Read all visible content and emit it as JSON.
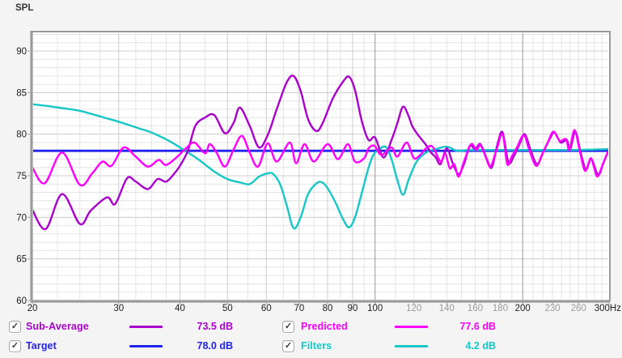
{
  "title": "SPL",
  "colors": {
    "sub_average": "#AA00CC",
    "target": "#2222EE",
    "predicted": "#FF00FF",
    "filters": "#17C6C6",
    "tick_dark": "#1c1c1c",
    "tick_gray": "#9b9b9b",
    "frame": "#9b9b9b",
    "grid_minor": "#e4e4e4",
    "grid_medium": "#cccccc",
    "grid_dark": "#a6a6a6",
    "plot_bg": "#ffffff"
  },
  "chart_data": {
    "type": "line",
    "title": "SPL",
    "xlabel": "Hz",
    "ylabel": "SPL (dB)",
    "x_scale": "log",
    "x_range": [
      20,
      300
    ],
    "y_range": [
      60,
      92.3
    ],
    "grid": true,
    "legend_position": "bottom",
    "y_major_ticks": [
      90,
      85,
      80,
      75,
      70,
      65,
      60
    ],
    "x_ticks": [
      {
        "f": 20,
        "label": "20"
      },
      {
        "f": 30,
        "label": "30"
      },
      {
        "f": 40,
        "label": "40"
      },
      {
        "f": 50,
        "label": "50"
      },
      {
        "f": 60,
        "label": "60"
      },
      {
        "f": 70,
        "label": "70"
      },
      {
        "f": 80,
        "label": "80"
      },
      {
        "f": 90,
        "label": "90"
      },
      {
        "f": 100,
        "label": "100"
      },
      {
        "f": 120,
        "label": "120",
        "gray": true
      },
      {
        "f": 140,
        "label": "140",
        "gray": true
      },
      {
        "f": 160,
        "label": "160",
        "gray": true
      },
      {
        "f": 180,
        "label": "180",
        "gray": true
      },
      {
        "f": 200,
        "label": "200"
      },
      {
        "f": 230,
        "label": "230",
        "gray": true
      },
      {
        "f": 260,
        "label": "260",
        "gray": true
      },
      {
        "f": 300,
        "label": "300Hz",
        "end": true
      }
    ],
    "x_medium_gridlines": [
      30,
      40,
      50,
      60,
      70,
      80,
      90
    ],
    "x_dark_gridlines": [
      100,
      200
    ],
    "x_minor_gridlines": [
      22.5,
      25,
      27.5,
      32.5,
      35,
      37.5,
      45,
      55,
      65,
      75,
      85,
      95,
      110,
      120,
      130,
      140,
      150,
      160,
      170,
      180,
      190,
      210,
      220,
      230,
      240,
      250,
      260,
      270,
      280,
      290
    ],
    "series": [
      {
        "name": "Target",
        "color": "#2222EE",
        "width": 2.8,
        "points": [
          [
            20,
            78
          ],
          [
            300,
            78
          ]
        ]
      },
      {
        "name": "Filters",
        "color": "#17C6C6",
        "width": 2.4,
        "points": [
          [
            20,
            83.6
          ],
          [
            22,
            83.3
          ],
          [
            25,
            82.8
          ],
          [
            28,
            82.0
          ],
          [
            30,
            81.5
          ],
          [
            33,
            80.7
          ],
          [
            35,
            80.2
          ],
          [
            38,
            79.2
          ],
          [
            41,
            78.0
          ],
          [
            44,
            76.8
          ],
          [
            47,
            75.5
          ],
          [
            50,
            74.6
          ],
          [
            53,
            74.2
          ],
          [
            55.5,
            74.0
          ],
          [
            58,
            74.9
          ],
          [
            60.5,
            75.3
          ],
          [
            62,
            75.2
          ],
          [
            64,
            74.0
          ],
          [
            66,
            71.5
          ],
          [
            68.2,
            68.7
          ],
          [
            70.5,
            70.0
          ],
          [
            73,
            72.8
          ],
          [
            76,
            74.1
          ],
          [
            78,
            74.2
          ],
          [
            80,
            73.5
          ],
          [
            83,
            71.8
          ],
          [
            86,
            69.8
          ],
          [
            88.5,
            68.8
          ],
          [
            91,
            70.0
          ],
          [
            94,
            73.0
          ],
          [
            97,
            76.0
          ],
          [
            99,
            77.4
          ],
          [
            101,
            78.0
          ],
          [
            105,
            78.5
          ],
          [
            108,
            77.0
          ],
          [
            111,
            74.5
          ],
          [
            114,
            72.7
          ],
          [
            117,
            74.5
          ],
          [
            121,
            76.5
          ],
          [
            124,
            77.3
          ],
          [
            128,
            77.9
          ],
          [
            133,
            78.2
          ],
          [
            140,
            78.5
          ],
          [
            147,
            78.0
          ],
          [
            155,
            78.1
          ],
          [
            170,
            78.1
          ],
          [
            200,
            78.1
          ],
          [
            250,
            78.1
          ],
          [
            300,
            78.2
          ]
        ]
      },
      {
        "name": "Sub-Average",
        "color": "#AA00CC",
        "width": 2.4,
        "points": [
          [
            20,
            70.9
          ],
          [
            21.3,
            68.6
          ],
          [
            23,
            72.8
          ],
          [
            25,
            69.2
          ],
          [
            26.3,
            70.8
          ],
          [
            28.4,
            72.4
          ],
          [
            29.5,
            71.6
          ],
          [
            31.2,
            74.7
          ],
          [
            32.5,
            74.3
          ],
          [
            34.4,
            73.4
          ],
          [
            36,
            74.6
          ],
          [
            37.5,
            74.3
          ],
          [
            39,
            75.3
          ],
          [
            40,
            76.2
          ],
          [
            41.5,
            78.0
          ],
          [
            43,
            81.0
          ],
          [
            45,
            82.0
          ],
          [
            47,
            82.3
          ],
          [
            49.4,
            80.1
          ],
          [
            51.5,
            81.4
          ],
          [
            53,
            83.2
          ],
          [
            55.5,
            81.0
          ],
          [
            58,
            78.4
          ],
          [
            60.5,
            80.0
          ],
          [
            63,
            83.0
          ],
          [
            66,
            86.2
          ],
          [
            68.2,
            87.0
          ],
          [
            70.5,
            85.2
          ],
          [
            73,
            81.8
          ],
          [
            75.8,
            80.4
          ],
          [
            78,
            81.2
          ],
          [
            82,
            84.3
          ],
          [
            86,
            86.3
          ],
          [
            88.5,
            86.9
          ],
          [
            91,
            85.3
          ],
          [
            94,
            81.5
          ],
          [
            97,
            79.3
          ],
          [
            100,
            79.6
          ],
          [
            104,
            77.2
          ],
          [
            108,
            79.3
          ],
          [
            111,
            81.3
          ],
          [
            114,
            83.3
          ],
          [
            117,
            82.2
          ],
          [
            119,
            81.0
          ],
          [
            122,
            80.0
          ],
          [
            127,
            78.7
          ],
          [
            130,
            77.8
          ],
          [
            133,
            77.2
          ],
          [
            136,
            76.4
          ],
          [
            140,
            78.3
          ],
          [
            144,
            76.5
          ],
          [
            148,
            75.2
          ],
          [
            152,
            76.5
          ],
          [
            156,
            78.6
          ],
          [
            160,
            78.2
          ],
          [
            164,
            78.8
          ],
          [
            169,
            77.0
          ],
          [
            173,
            76.0
          ],
          [
            178,
            79.0
          ],
          [
            182,
            80.2
          ],
          [
            187,
            76.6
          ],
          [
            192,
            77.4
          ],
          [
            197,
            78.8
          ],
          [
            202,
            80.0
          ],
          [
            208,
            77.9
          ],
          [
            214,
            76.4
          ],
          [
            220,
            77.8
          ],
          [
            226,
            79.2
          ],
          [
            232,
            80.2
          ],
          [
            239,
            79.0
          ],
          [
            246,
            79.3
          ],
          [
            250,
            78.2
          ],
          [
            256,
            80.3
          ],
          [
            262,
            78.0
          ],
          [
            269,
            75.8
          ],
          [
            276,
            77.0
          ],
          [
            285,
            75.1
          ],
          [
            292,
            76.5
          ],
          [
            300,
            78.2
          ]
        ]
      },
      {
        "name": "Predicted",
        "color": "#FF00FF",
        "width": 2.4,
        "points": [
          [
            20,
            76.0
          ],
          [
            21.2,
            74.1
          ],
          [
            23,
            77.8
          ],
          [
            25,
            73.9
          ],
          [
            26.5,
            75.3
          ],
          [
            27.8,
            76.7
          ],
          [
            29,
            76.2
          ],
          [
            30.7,
            78.4
          ],
          [
            32.5,
            77.3
          ],
          [
            34.4,
            76.1
          ],
          [
            36.2,
            76.9
          ],
          [
            37.4,
            76.3
          ],
          [
            39,
            77.0
          ],
          [
            41,
            78.2
          ],
          [
            42.8,
            79.0
          ],
          [
            45,
            77.7
          ],
          [
            46,
            78.8
          ],
          [
            47.5,
            77.8
          ],
          [
            49.4,
            76.1
          ],
          [
            51.5,
            78.2
          ],
          [
            53.5,
            79.8
          ],
          [
            55.5,
            77.8
          ],
          [
            57.7,
            76.1
          ],
          [
            60.4,
            78.9
          ],
          [
            63,
            76.7
          ],
          [
            67,
            79.0
          ],
          [
            69,
            76.5
          ],
          [
            71.8,
            78.8
          ],
          [
            75,
            76.7
          ],
          [
            80,
            78.8
          ],
          [
            84,
            77.0
          ],
          [
            88,
            78.8
          ],
          [
            91,
            76.7
          ],
          [
            95,
            77.1
          ],
          [
            97,
            78.3
          ],
          [
            99.7,
            78.6
          ],
          [
            103,
            77.5
          ],
          [
            108,
            78.4
          ],
          [
            111,
            77.3
          ],
          [
            116,
            79.0
          ],
          [
            120,
            77.1
          ],
          [
            124,
            77.6
          ],
          [
            127,
            78.3
          ],
          [
            131,
            78.5
          ],
          [
            136,
            76.7
          ],
          [
            139,
            77.7
          ],
          [
            142,
            75.9
          ],
          [
            145,
            76.4
          ],
          [
            148,
            74.9
          ],
          [
            152,
            76.8
          ],
          [
            157,
            78.8
          ],
          [
            161,
            78.1
          ],
          [
            164,
            78.7
          ],
          [
            168,
            77.3
          ],
          [
            172,
            76.1
          ],
          [
            177,
            78.2
          ],
          [
            182,
            80.0
          ],
          [
            186,
            76.4
          ],
          [
            190,
            77.3
          ],
          [
            195,
            78.5
          ],
          [
            201,
            79.9
          ],
          [
            206,
            78.2
          ],
          [
            213,
            76.2
          ],
          [
            219,
            77.5
          ],
          [
            225,
            79.0
          ],
          [
            231,
            80.3
          ],
          [
            238,
            79.2
          ],
          [
            245,
            79.4
          ],
          [
            249,
            78.1
          ],
          [
            255,
            80.5
          ],
          [
            261,
            78.2
          ],
          [
            268,
            75.6
          ],
          [
            275,
            77.1
          ],
          [
            279,
            76.2
          ],
          [
            284,
            74.9
          ],
          [
            291,
            76.3
          ],
          [
            297,
            77.6
          ],
          [
            300,
            78.1
          ]
        ]
      }
    ]
  },
  "legend": {
    "items": [
      {
        "label": "Sub-Average",
        "value": "73.5 dB",
        "color": "#AA00CC",
        "check": "✓"
      },
      {
        "label": "Target",
        "value": "78.0 dB",
        "color": "#2222EE",
        "check": "✓"
      },
      {
        "label": "Predicted",
        "value": "77.6 dB",
        "color": "#FF00FF",
        "check": "✓"
      },
      {
        "label": "Filters",
        "value": "4.2 dB",
        "color": "#17C6C6",
        "check": "✓"
      }
    ]
  }
}
